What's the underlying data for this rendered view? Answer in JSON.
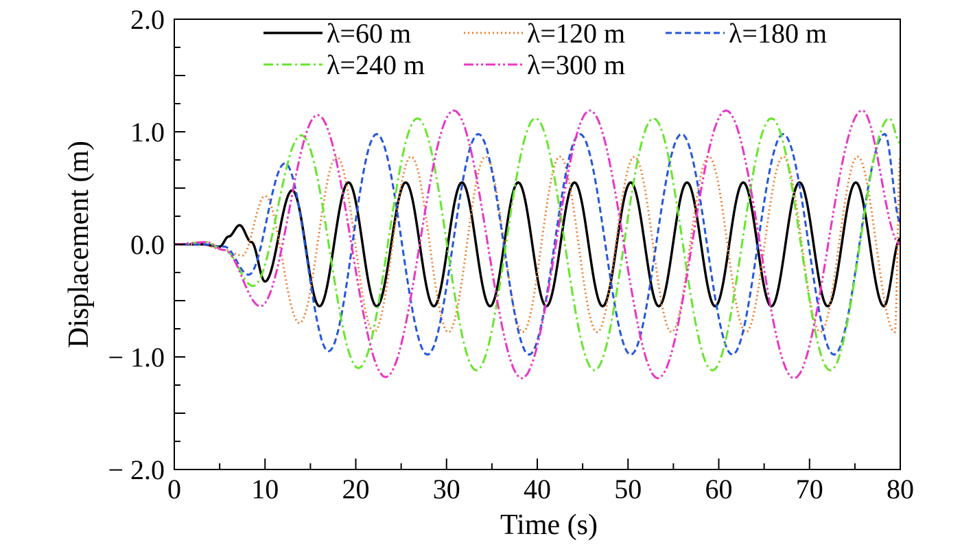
{
  "chart_data": {
    "type": "line",
    "xlabel": "Time (s)",
    "ylabel": "Displacement (m)",
    "xlim": [
      0,
      80
    ],
    "ylim": [
      -2.0,
      2.0
    ],
    "x_ticks": [
      0,
      10,
      20,
      30,
      40,
      50,
      60,
      70,
      80
    ],
    "x_tick_labels": [
      "0",
      "10",
      "20",
      "30",
      "40",
      "50",
      "60",
      "70",
      "80"
    ],
    "y_ticks": [
      -2.0,
      -1.0,
      0.0,
      1.0,
      2.0
    ],
    "y_tick_labels": [
      "− 2.0",
      "− 1.0",
      "0.0",
      "1.0",
      "2.0"
    ],
    "grid": false,
    "legend_position": "top",
    "series": [
      {
        "name": "λ=60 m",
        "color": "#000000",
        "style": "solid",
        "x": [
          0,
          3,
          5,
          6,
          7.2,
          8.5,
          10,
          13,
          16,
          19.2,
          22.3,
          25.5,
          28.6,
          31.7,
          34.8,
          37.9,
          41,
          44.1,
          47.2,
          50.3,
          53.4,
          56.5,
          59.6,
          62.7,
          65.8,
          68.9,
          72,
          75.1,
          78.2,
          80
        ],
        "y": [
          0,
          0,
          -0.02,
          0.07,
          0.17,
          0.02,
          -0.33,
          0.48,
          -0.55,
          0.55,
          -0.55,
          0.55,
          -0.55,
          0.55,
          -0.55,
          0.55,
          -0.55,
          0.55,
          -0.55,
          0.55,
          -0.55,
          0.55,
          -0.55,
          0.55,
          -0.55,
          0.55,
          -0.55,
          0.55,
          -0.55,
          0.05
        ]
      },
      {
        "name": "λ=120 m",
        "color": "#ee7d31",
        "style": "dotted",
        "x": [
          0,
          3,
          5.5,
          7.5,
          10,
          13.8,
          17.9,
          22,
          26.1,
          30.2,
          34.3,
          38.4,
          42.5,
          46.6,
          50.7,
          54.8,
          58.9,
          63,
          67.1,
          71.2,
          75.3,
          79.4,
          80
        ],
        "y": [
          0,
          0,
          -0.05,
          -0.1,
          0.43,
          -0.7,
          0.78,
          -0.78,
          0.78,
          -0.78,
          0.78,
          -0.78,
          0.78,
          -0.78,
          0.78,
          -0.78,
          0.78,
          -0.78,
          0.78,
          -0.78,
          0.78,
          -0.78,
          0.78
        ]
      },
      {
        "name": "λ=180 m",
        "color": "#2456dd",
        "style": "dashed",
        "x": [
          0,
          3,
          5.5,
          8.2,
          12.2,
          17,
          22.3,
          27.9,
          33.5,
          39.1,
          44.7,
          50.3,
          55.9,
          61.5,
          67.1,
          72.7,
          78.3,
          80
        ],
        "y": [
          0,
          0,
          -0.02,
          -0.27,
          0.72,
          -0.95,
          0.98,
          -0.98,
          0.98,
          -0.98,
          0.98,
          -0.98,
          0.98,
          -0.98,
          0.98,
          -0.98,
          0.98,
          0.2
        ]
      },
      {
        "name": "λ=240 m",
        "color": "#66e62c",
        "style": "dashdot",
        "x": [
          0,
          3.5,
          5.5,
          8.7,
          14,
          20.3,
          26.8,
          33.3,
          39.8,
          46.3,
          52.8,
          59.3,
          65.8,
          72.3,
          78.8,
          80
        ],
        "y": [
          0,
          0.02,
          -0.05,
          -0.37,
          0.97,
          -1.1,
          1.12,
          -1.12,
          1.12,
          -1.12,
          1.12,
          -1.12,
          1.12,
          -1.12,
          1.12,
          0.9
        ]
      },
      {
        "name": "λ=300 m",
        "color": "#ea35c5",
        "style": "dashdotdot",
        "x": [
          0,
          3.5,
          5.5,
          9.5,
          15.8,
          23.3,
          30.8,
          38.3,
          45.8,
          53.3,
          60.8,
          68.3,
          75.8,
          80
        ],
        "y": [
          0,
          0.02,
          -0.05,
          -0.55,
          1.15,
          -1.18,
          1.19,
          -1.19,
          1.19,
          -1.19,
          1.19,
          -1.19,
          1.19,
          0.0
        ]
      }
    ]
  }
}
